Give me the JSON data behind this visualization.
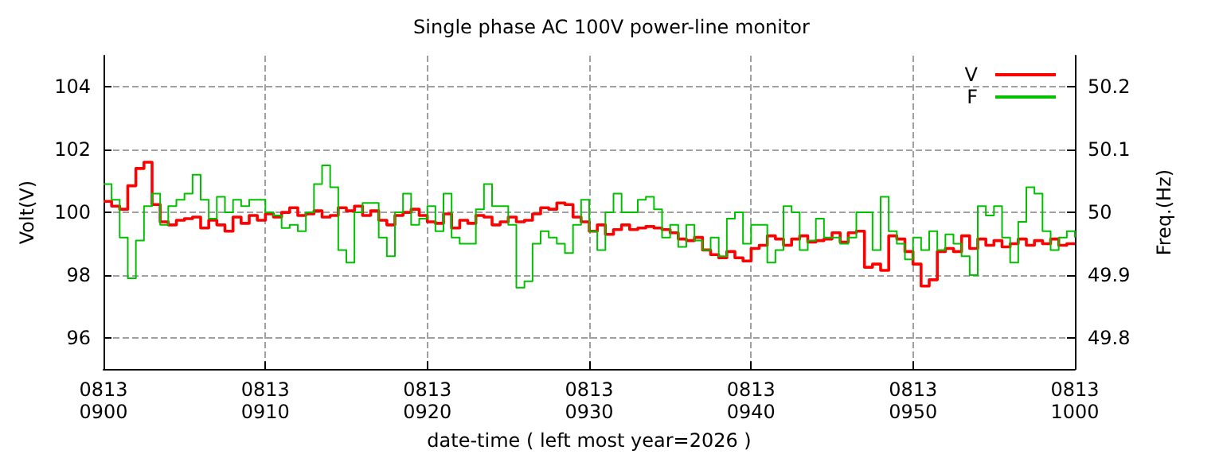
{
  "chart_data": {
    "type": "step",
    "title": "Single phase AC 100V power-line monitor",
    "xlabel": "date-time ( left most year=2026 )",
    "ylabel": "Volt(V)",
    "y2label": "Freq.(Hz)",
    "x": [
      "2026-08-13T09:00:00",
      "2026-08-13T09:00:30",
      "2026-08-13T09:01:00",
      "2026-08-13T09:01:30",
      "2026-08-13T09:02:00",
      "2026-08-13T09:02:30",
      "2026-08-13T09:03:00",
      "2026-08-13T09:03:30",
      "2026-08-13T09:04:00",
      "2026-08-13T09:04:30",
      "2026-08-13T09:05:00",
      "2026-08-13T09:05:30",
      "2026-08-13T09:06:00",
      "2026-08-13T09:06:30",
      "2026-08-13T09:07:00",
      "2026-08-13T09:07:30",
      "2026-08-13T09:08:00",
      "2026-08-13T09:08:30",
      "2026-08-13T09:09:00",
      "2026-08-13T09:09:30",
      "2026-08-13T09:10:00",
      "2026-08-13T09:10:30",
      "2026-08-13T09:11:00",
      "2026-08-13T09:11:30",
      "2026-08-13T09:12:00",
      "2026-08-13T09:12:30",
      "2026-08-13T09:13:00",
      "2026-08-13T09:13:30",
      "2026-08-13T09:14:00",
      "2026-08-13T09:14:30",
      "2026-08-13T09:15:00",
      "2026-08-13T09:15:30",
      "2026-08-13T09:16:00",
      "2026-08-13T09:16:30",
      "2026-08-13T09:17:00",
      "2026-08-13T09:17:30",
      "2026-08-13T09:18:00",
      "2026-08-13T09:18:30",
      "2026-08-13T09:19:00",
      "2026-08-13T09:19:30",
      "2026-08-13T09:20:00",
      "2026-08-13T09:20:30",
      "2026-08-13T09:21:00",
      "2026-08-13T09:21:30",
      "2026-08-13T09:22:00",
      "2026-08-13T09:22:30",
      "2026-08-13T09:23:00",
      "2026-08-13T09:23:30",
      "2026-08-13T09:24:00",
      "2026-08-13T09:24:30",
      "2026-08-13T09:25:00",
      "2026-08-13T09:25:30",
      "2026-08-13T09:26:00",
      "2026-08-13T09:26:30",
      "2026-08-13T09:27:00",
      "2026-08-13T09:27:30",
      "2026-08-13T09:28:00",
      "2026-08-13T09:28:30",
      "2026-08-13T09:29:00",
      "2026-08-13T09:29:30",
      "2026-08-13T09:30:00",
      "2026-08-13T09:30:30",
      "2026-08-13T09:31:00",
      "2026-08-13T09:31:30",
      "2026-08-13T09:32:00",
      "2026-08-13T09:32:30",
      "2026-08-13T09:33:00",
      "2026-08-13T09:33:30",
      "2026-08-13T09:34:00",
      "2026-08-13T09:34:30",
      "2026-08-13T09:35:00",
      "2026-08-13T09:35:30",
      "2026-08-13T09:36:00",
      "2026-08-13T09:36:30",
      "2026-08-13T09:37:00",
      "2026-08-13T09:37:30",
      "2026-08-13T09:38:00",
      "2026-08-13T09:38:30",
      "2026-08-13T09:39:00",
      "2026-08-13T09:39:30",
      "2026-08-13T09:40:00",
      "2026-08-13T09:40:30",
      "2026-08-13T09:41:00",
      "2026-08-13T09:41:30",
      "2026-08-13T09:42:00",
      "2026-08-13T09:42:30",
      "2026-08-13T09:43:00",
      "2026-08-13T09:43:30",
      "2026-08-13T09:44:00",
      "2026-08-13T09:44:30",
      "2026-08-13T09:45:00",
      "2026-08-13T09:45:30",
      "2026-08-13T09:46:00",
      "2026-08-13T09:46:30",
      "2026-08-13T09:47:00",
      "2026-08-13T09:47:30",
      "2026-08-13T09:48:00",
      "2026-08-13T09:48:30",
      "2026-08-13T09:49:00",
      "2026-08-13T09:49:30",
      "2026-08-13T09:50:00",
      "2026-08-13T09:50:30",
      "2026-08-13T09:51:00",
      "2026-08-13T09:51:30",
      "2026-08-13T09:52:00",
      "2026-08-13T09:52:30",
      "2026-08-13T09:53:00",
      "2026-08-13T09:53:30",
      "2026-08-13T09:54:00",
      "2026-08-13T09:54:30",
      "2026-08-13T09:55:00",
      "2026-08-13T09:55:30",
      "2026-08-13T09:56:00",
      "2026-08-13T09:56:30",
      "2026-08-13T09:57:00",
      "2026-08-13T09:57:30",
      "2026-08-13T09:58:00",
      "2026-08-13T09:58:30",
      "2026-08-13T09:59:00",
      "2026-08-13T09:59:30",
      "2026-08-13T10:00:00"
    ],
    "series": [
      {
        "name": "V",
        "color": "#ff0000",
        "values": [
          100.35,
          100.2,
          100.1,
          100.85,
          101.4,
          101.6,
          100.25,
          99.7,
          99.6,
          99.75,
          99.8,
          99.85,
          99.5,
          99.75,
          99.6,
          99.4,
          99.85,
          99.65,
          99.9,
          99.75,
          99.95,
          99.85,
          100,
          100.15,
          99.9,
          99.95,
          100.05,
          99.85,
          99.9,
          100.15,
          100.05,
          100.2,
          99.9,
          100.05,
          99.75,
          99.6,
          99.9,
          100,
          100.1,
          99.9,
          99.7,
          99.65,
          99.95,
          99.5,
          99.75,
          99.65,
          99.9,
          99.85,
          99.6,
          99.7,
          99.85,
          99.7,
          99.75,
          99.95,
          100.15,
          100.1,
          100.3,
          100.25,
          99.85,
          99.7,
          99.4,
          99.6,
          99.3,
          99.45,
          99.6,
          99.45,
          99.5,
          99.55,
          99.5,
          99.45,
          99.35,
          99.15,
          99.1,
          99.2,
          98.8,
          98.65,
          98.55,
          98.75,
          98.55,
          98.45,
          98.85,
          98.95,
          99.25,
          99.15,
          98.95,
          99.15,
          99.25,
          99.05,
          99.1,
          99.15,
          99.35,
          99.05,
          99.35,
          99.4,
          98.25,
          98.35,
          98.15,
          99.25,
          99.15,
          98.75,
          98.35,
          97.65,
          97.85,
          98.75,
          98.85,
          98.75,
          99.25,
          98.85,
          99.15,
          98.95,
          99.1,
          98.9,
          99,
          99.15,
          98.95,
          99.1,
          99,
          99.15,
          98.95,
          99,
          99
        ]
      },
      {
        "name": "F",
        "color": "#00c000",
        "axis": "y2",
        "values": [
          50.045,
          50.02,
          49.96,
          49.895,
          49.955,
          50.01,
          50.03,
          49.98,
          50.01,
          50.02,
          50.03,
          50.06,
          50.02,
          49.99,
          50.025,
          50.0,
          50.02,
          50.01,
          50.02,
          50.02,
          50.0,
          49.995,
          49.975,
          49.98,
          49.97,
          50.0,
          50.045,
          50.075,
          50.04,
          49.94,
          49.92,
          50.0,
          50.015,
          50.015,
          49.96,
          49.93,
          50.0,
          50.03,
          49.98,
          49.99,
          50.01,
          49.97,
          50.03,
          49.96,
          49.95,
          49.95,
          50.005,
          50.045,
          50.01,
          50.01,
          49.98,
          49.88,
          49.89,
          49.95,
          49.97,
          49.96,
          49.95,
          49.935,
          49.98,
          50.02,
          49.97,
          49.94,
          50.0,
          50.03,
          50.0,
          50.0,
          50.02,
          50.025,
          50.005,
          49.96,
          49.98,
          49.945,
          49.98,
          49.955,
          49.94,
          49.96,
          49.93,
          49.99,
          50.0,
          49.95,
          49.98,
          49.98,
          49.92,
          49.94,
          50.01,
          50.0,
          49.94,
          49.955,
          49.99,
          49.96,
          49.96,
          49.95,
          49.96,
          50.0,
          50.0,
          49.94,
          50.025,
          49.97,
          49.95,
          49.925,
          49.96,
          49.94,
          49.97,
          49.94,
          49.965,
          49.95,
          49.93,
          49.9,
          50.01,
          49.995,
          50.01,
          49.96,
          49.92,
          49.985,
          50.04,
          50.03,
          49.97,
          49.94,
          49.96,
          49.97,
          49.96
        ]
      }
    ],
    "xlim": [
      "2026-08-13T09:00",
      "2026-08-13T10:00"
    ],
    "xticks": [
      {
        "value": "2026-08-13T09:00",
        "label": "0813\n0900"
      },
      {
        "value": "2026-08-13T09:10",
        "label": "0813\n0910"
      },
      {
        "value": "2026-08-13T09:20",
        "label": "0813\n0920"
      },
      {
        "value": "2026-08-13T09:30",
        "label": "0813\n0930"
      },
      {
        "value": "2026-08-13T09:40",
        "label": "0813\n0940"
      },
      {
        "value": "2026-08-13T09:50",
        "label": "0813\n0950"
      },
      {
        "value": "2026-08-13T10:00",
        "label": "0813\n1000"
      }
    ],
    "ylim": [
      95,
      105
    ],
    "yticks": [
      96,
      98,
      100,
      102,
      104
    ],
    "y2lim": [
      49.75,
      50.25
    ],
    "y2ticks": [
      49.8,
      49.9,
      50,
      50.1,
      50.2
    ],
    "grid": true,
    "legend": "top right",
    "line_style": "solid"
  }
}
